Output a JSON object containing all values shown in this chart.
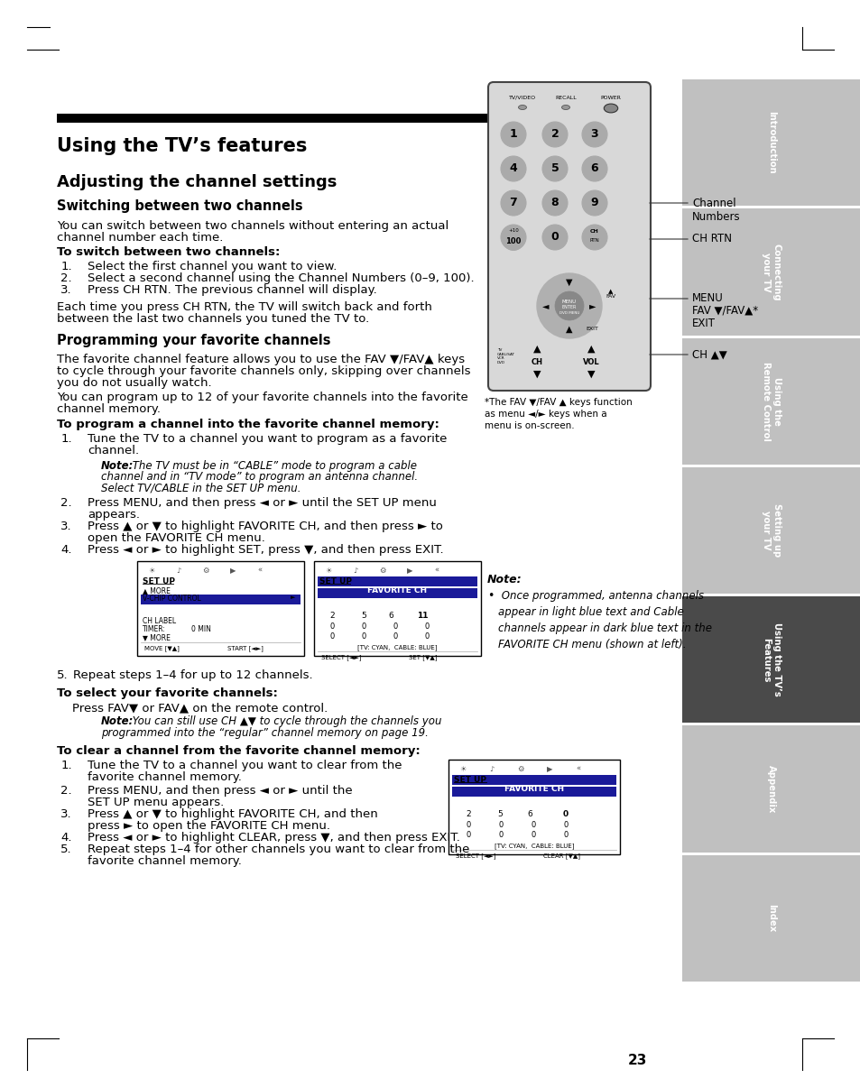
{
  "page_bg": "#ffffff",
  "page_num": "23",
  "title": "Using the TV’s features",
  "section1": "Adjusting the channel settings",
  "subsection1": "Switching between two channels",
  "body1a": "You can switch between two channels without entering an actual",
  "body1b": "channel number each time.",
  "bold1": "To switch between two channels:",
  "steps1": [
    "Select the first channel you want to view.",
    "Select a second channel using the Channel Numbers (0–9, 100).",
    "Press CH RTN. The previous channel will display."
  ],
  "body2a": "Each time you press CH RTN, the TV will switch back and forth",
  "body2b": "between the last two channels you tuned the TV to.",
  "subsection2": "Programming your favorite channels",
  "body3a": "The favorite channel feature allows you to use the FAV ▼/FAV▲ keys",
  "body3b": "to cycle through your favorite channels only, skipping over channels",
  "body3c": "you do not usually watch.",
  "body4a": "You can program up to 12 of your favorite channels into the favorite",
  "body4b": "channel memory.",
  "bold2": "To program a channel into the favorite channel memory:",
  "step2_1a": "Tune the TV to a channel you want to program as a favorite",
  "step2_1b": "channel.",
  "note1_bold": "Note:",
  "note1_text": " The TV must be in “CABLE” mode to program a cable",
  "note1_line2": "channel and in “TV mode” to program an antenna channel.",
  "note1_line3": "Select TV/CABLE in the SET UP menu.",
  "step2_2a": "Press MENU, and then press ◄ or ► until the SET UP menu",
  "step2_2b": "appears.",
  "step2_3a": "Press ▲ or ▼ to highlight FAVORITE CH, and then press ► to",
  "step2_3b": "open the FAVORITE CH menu.",
  "step2_4": "Press ◄ or ► to highlight SET, press ▼, and then press EXIT.",
  "step5": "Repeat steps 1–4 for up to 12 channels.",
  "bold3": "To select your favorite channels:",
  "body5": "Press FAV▼ or FAV▲ on the remote control.",
  "note2_bold": "Note:",
  "note2_text": " You can still use CH ▲▼ to cycle through the channels you",
  "note2_line2": "programmed into the “regular” channel memory on page 19.",
  "bold4": "To clear a channel from the favorite channel memory:",
  "step3_1a": "Tune the TV to a channel you want to clear from the",
  "step3_1b": "favorite channel memory.",
  "step3_2a": "Press MENU, and then press ◄ or ► until the",
  "step3_2b": "SET UP menu appears.",
  "step3_3a": "Press ▲ or ▼ to highlight FAVORITE CH, and then",
  "step3_3b": "press ► to open the FAVORITE CH menu.",
  "step3_4": "Press ◄ or ► to highlight CLEAR, press ▼, and then press EXIT.",
  "step3_5a": "Repeat steps 1–4 for other channels you want to clear from the",
  "step3_5b": "favorite channel memory.",
  "sidebar_labels": [
    "Introduction",
    "Connecting\nyour TV",
    "Using the\nRemote Control",
    "Setting up\nyour TV",
    "Using the TV’s\nFeatures",
    "Appendix",
    "Index"
  ],
  "sidebar_active": 4,
  "sidebar_colors": [
    "#c0c0c0",
    "#c0c0c0",
    "#c0c0c0",
    "#c0c0c0",
    "#4a4a4a",
    "#c0c0c0",
    "#c0c0c0"
  ],
  "note_right_bold": "Note:",
  "note_right_body": " Once programmed, antenna channels\nappear in light blue text and Cable\nchannels appear in dark blue text in the\nFAVORITE CH menu (shown at left).",
  "remote_ann": [
    "Channel\nNumbers",
    "CH RTN",
    "MENU",
    "FAV ▼/FAV▲*",
    "EXIT",
    "CH ▲▼"
  ],
  "footnote_line1": "*The FAV ▼/FAV ▲ keys function",
  "footnote_line2": "as menu ◄/► keys when a",
  "footnote_line3": "menu is on-screen."
}
